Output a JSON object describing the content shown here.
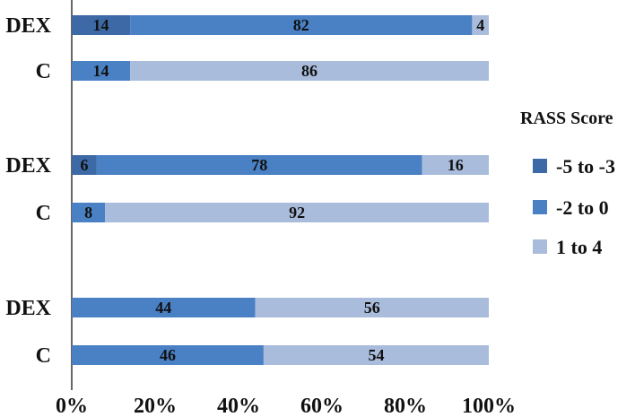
{
  "chart_data": {
    "type": "bar",
    "orientation": "horizontal",
    "stacked": "percent",
    "categories": [
      "DEX",
      "C",
      "DEX",
      "C",
      "DEX",
      "C"
    ],
    "series": [
      {
        "name": "-5 to -3",
        "values": [
          14,
          0,
          6,
          0,
          0,
          0
        ],
        "color": "#3d6aa6"
      },
      {
        "name": "-2 to 0",
        "values": [
          82,
          14,
          78,
          8,
          44,
          46
        ],
        "color": "#4a80c4"
      },
      {
        "name": "1 to 4",
        "values": [
          4,
          86,
          16,
          92,
          56,
          54
        ],
        "color": "#a9bcdb"
      }
    ],
    "xlim": [
      0,
      100
    ],
    "x_ticks": [
      "0%",
      "20%",
      "40%",
      "60%",
      "80%",
      "100%"
    ],
    "grid": false,
    "legend": {
      "title": "RASS Score",
      "placement": "right"
    }
  }
}
